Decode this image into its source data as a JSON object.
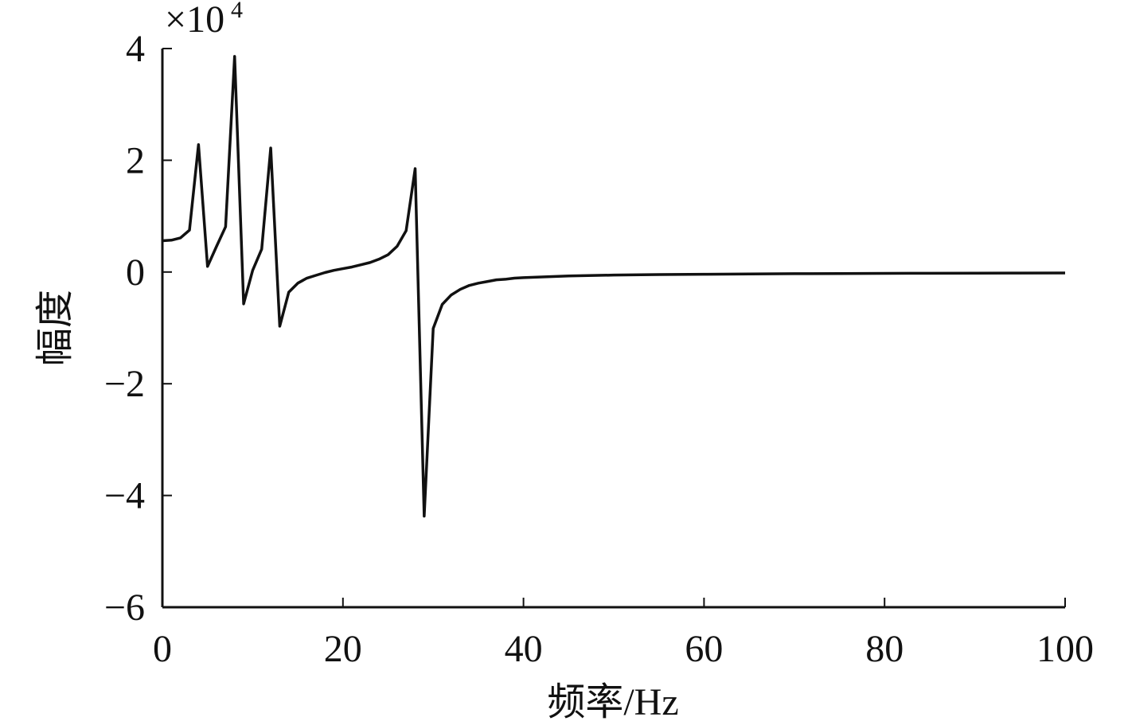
{
  "chart_data": {
    "type": "line",
    "x_label": "频率/Hz",
    "y_label": "幅度",
    "multiplier": {
      "base": "×10",
      "exponent": "4"
    },
    "x": [
      0,
      1,
      2,
      3,
      4,
      5,
      6,
      7,
      8,
      9,
      10,
      11,
      12,
      13,
      14,
      15,
      16,
      17,
      18,
      19,
      20,
      21,
      22,
      23,
      24,
      25,
      26,
      27,
      28,
      29,
      30,
      31,
      32,
      33,
      34,
      35,
      36,
      37,
      38,
      39,
      40,
      45,
      50,
      55,
      60,
      65,
      70,
      75,
      80,
      85,
      90,
      95,
      100
    ],
    "series": [
      {
        "color": "#111111",
        "values": [
          0.56,
          0.57,
          0.61,
          0.75,
          2.28,
          0.1,
          0.46,
          0.81,
          3.86,
          -0.57,
          0.03,
          0.41,
          2.22,
          -0.97,
          -0.36,
          -0.2,
          -0.11,
          -0.06,
          -0.01,
          0.03,
          0.06,
          0.09,
          0.13,
          0.17,
          0.23,
          0.31,
          0.46,
          0.74,
          1.85,
          -4.37,
          -1.01,
          -0.58,
          -0.41,
          -0.31,
          -0.24,
          -0.2,
          -0.17,
          -0.14,
          -0.13,
          -0.11,
          -0.1,
          -0.07,
          -0.055,
          -0.045,
          -0.04,
          -0.035,
          -0.03,
          -0.027,
          -0.025,
          -0.022,
          -0.02,
          -0.018,
          -0.017
        ]
      }
    ],
    "xlim": [
      0,
      100
    ],
    "xticks": [
      0,
      20,
      40,
      60,
      80,
      100
    ],
    "ylim": [
      -6,
      4
    ],
    "yticks": [
      {
        "value": -6,
        "label": "−6"
      },
      {
        "value": -4,
        "label": "−4"
      },
      {
        "value": -2,
        "label": "−2"
      },
      0,
      2,
      4
    ]
  }
}
